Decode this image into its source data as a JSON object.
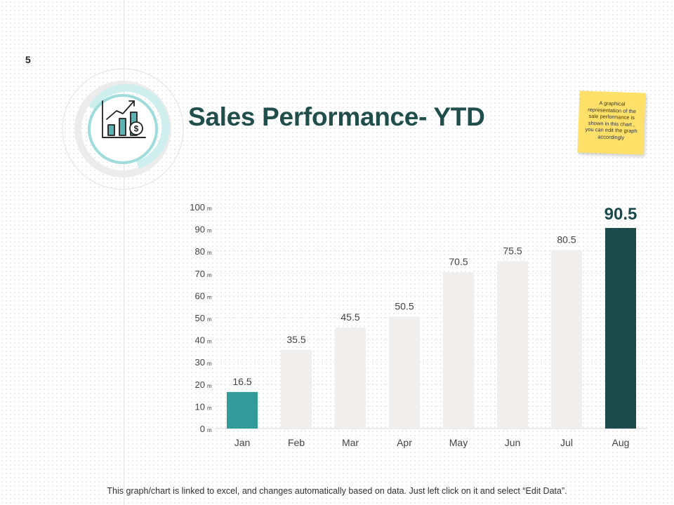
{
  "page": {
    "number": "5",
    "title": "Sales Performance- YTD",
    "note": "A graphical representation of the sale performance is shown in this chart , you can edit the graph accordingly",
    "footnote": "This graph/chart is linked to excel, and changes automatically based on data. Just left click on it and select “Edit Data”.",
    "icon": "sales-growth-chart-icon"
  },
  "colors": {
    "title": "#1f4e4b",
    "bar_default": "#f0efed",
    "bar_first": "#339b99",
    "bar_highlight": "#1b4b4a",
    "ring_light": "#cfeeee",
    "ring_grey": "#ececec"
  },
  "chart_data": {
    "type": "bar",
    "title": "",
    "xlabel": "",
    "ylabel": "",
    "categories": [
      "Jan",
      "Feb",
      "Mar",
      "Apr",
      "May",
      "Jun",
      "Jul",
      "Aug"
    ],
    "values": [
      16.5,
      35.5,
      45.5,
      50.5,
      70.5,
      75.5,
      80.5,
      90.5
    ],
    "value_labels": [
      "16.5",
      "35.5",
      "45.5",
      "50.5",
      "70.5",
      "75.5",
      "80.5",
      "90.5"
    ],
    "ylim": [
      0,
      100
    ],
    "yticks": [
      0,
      10,
      20,
      30,
      40,
      50,
      60,
      70,
      80,
      90,
      100
    ],
    "ytick_labels": [
      "0",
      "10",
      "20",
      "30",
      "40",
      "50",
      "60",
      "70",
      "80",
      "90",
      "100"
    ],
    "ytick_unit": "m",
    "highlight": "Aug",
    "grid": true
  }
}
